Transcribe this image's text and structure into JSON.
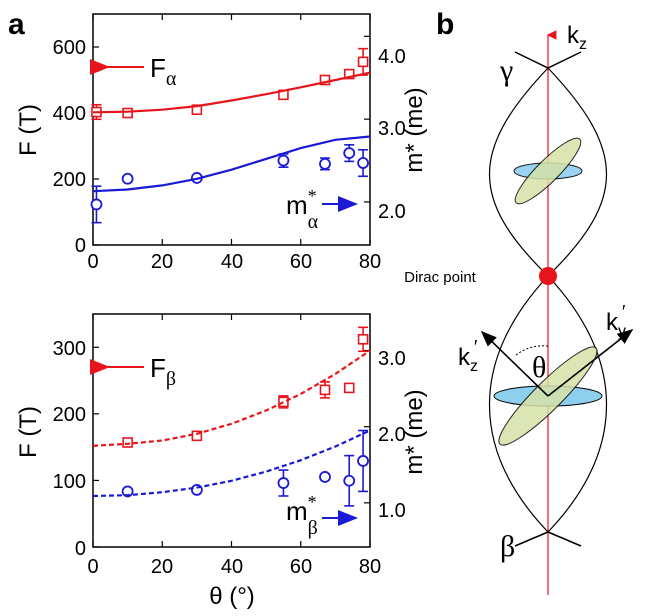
{
  "panels": {
    "a": "a",
    "b": "b"
  },
  "colors": {
    "red": "#e8141b",
    "blue": "#1a1ad6",
    "green": "#d6e2a8",
    "lightblue": "#8ecfee"
  },
  "chart_data": [
    {
      "type": "scatter",
      "panel": "a",
      "xlim": [
        0,
        80
      ],
      "ylim": [
        0,
        700
      ],
      "y2lim": [
        1.48,
        4.27
      ],
      "xticks": [
        "0",
        "20",
        "40",
        "60",
        "80"
      ],
      "yticks": [
        "0",
        "200",
        "400",
        "600"
      ],
      "y2ticks": [
        "2.0",
        "3.0",
        "4.0"
      ],
      "ylabel": "F (T)",
      "y2label": "m* (me)",
      "annotations": {
        "F": "F",
        "F_sub": "α",
        "m": "m",
        "m_star": "*",
        "m_sub": "α"
      },
      "series": [
        {
          "name": "Fα",
          "color": "#e8141b",
          "marker": "square",
          "axis": "left",
          "x": [
            1,
            10,
            30,
            55,
            67,
            74,
            78
          ],
          "y": [
            403,
            400,
            410,
            455,
            500,
            518,
            555
          ],
          "err": [
            22,
            8,
            8,
            10,
            8,
            10,
            40
          ]
        },
        {
          "name": "m*α",
          "color": "#1a1ad6",
          "marker": "circle",
          "axis": "right",
          "x": [
            1,
            10,
            30,
            55,
            67,
            74,
            78
          ],
          "y": [
            1.97,
            2.28,
            2.29,
            2.5,
            2.46,
            2.59,
            2.47
          ],
          "err": [
            0.22,
            0.0,
            0.0,
            0.08,
            0.07,
            0.1,
            0.16
          ]
        },
        {
          "name": "Fα fit",
          "color": "#e8141b",
          "line": "solid",
          "axis": "left",
          "x": [
            0,
            10,
            20,
            30,
            40,
            50,
            60,
            70,
            80
          ],
          "y": [
            402,
            404,
            410,
            421,
            438,
            457,
            478,
            500,
            522
          ]
        },
        {
          "name": "m*α fit",
          "color": "#1a1ad6",
          "line": "solid",
          "axis": "right",
          "x": [
            0,
            10,
            20,
            30,
            40,
            50,
            60,
            70,
            80
          ],
          "y": [
            2.13,
            2.15,
            2.2,
            2.28,
            2.39,
            2.52,
            2.65,
            2.75,
            2.79
          ]
        }
      ]
    },
    {
      "type": "scatter",
      "panel": "a-lower",
      "xlim": [
        0,
        80
      ],
      "ylim": [
        0,
        350
      ],
      "y2lim": [
        0.42,
        3.48
      ],
      "xticks": [
        "0",
        "20",
        "40",
        "60",
        "80"
      ],
      "yticks": [
        "0",
        "100",
        "200",
        "300"
      ],
      "y2ticks": [
        "1.0",
        "2.0",
        "3.0"
      ],
      "xlabel": "θ (°)",
      "ylabel": "F (T)",
      "y2label": "m* (me)",
      "annotations": {
        "F": "F",
        "F_sub": "β",
        "m": "m",
        "m_star": "*",
        "m_sub": "β"
      },
      "series": [
        {
          "name": "Fβ",
          "color": "#e8141b",
          "marker": "square",
          "axis": "left",
          "x": [
            10,
            30,
            55,
            67,
            74,
            78
          ],
          "y": [
            157,
            167,
            218,
            236,
            239,
            312
          ],
          "err": [
            0,
            0,
            9,
            12,
            0,
            18
          ]
        },
        {
          "name": "m*β",
          "color": "#1a1ad6",
          "marker": "circle",
          "axis": "right",
          "x": [
            10,
            30,
            55,
            67,
            74,
            78
          ],
          "y": [
            1.15,
            1.17,
            1.26,
            1.34,
            1.29,
            1.55
          ],
          "err": [
            0,
            0,
            0.17,
            0,
            0.33,
            0.4
          ]
        },
        {
          "name": "Fβ fit",
          "color": "#e8141b",
          "line": "dashed",
          "axis": "left",
          "x": [
            0,
            10,
            20,
            30,
            40,
            50,
            60,
            70,
            80
          ],
          "y": [
            152,
            155,
            160,
            170,
            185,
            205,
            230,
            260,
            295
          ]
        },
        {
          "name": "m*β fit",
          "color": "#1a1ad6",
          "line": "dashed",
          "axis": "right",
          "x": [
            0,
            10,
            20,
            30,
            40,
            50,
            60,
            70,
            80
          ],
          "y": [
            1.09,
            1.1,
            1.14,
            1.2,
            1.29,
            1.41,
            1.56,
            1.74,
            1.95
          ]
        }
      ]
    }
  ],
  "diagram": {
    "kz": "k",
    "kz_sub": "z",
    "kz_prime": "k",
    "kz_prime_sub": "z",
    "ky_prime": "k",
    "ky_prime_sub": "y",
    "prime": "′",
    "theta": "θ",
    "gamma": "γ",
    "beta": "β",
    "dirac_label": "Dirac point"
  }
}
